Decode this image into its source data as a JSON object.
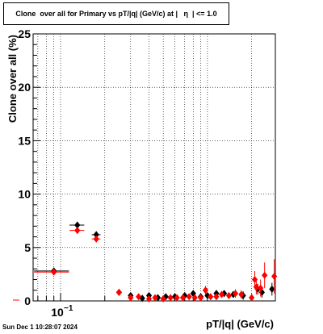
{
  "chart_data": {
    "type": "scatter",
    "title": "Clone  over all for Primary vs pT/|q| (GeV/c) at |   η  | <= 1.0",
    "xlabel": "pT/|q| (GeV/c)",
    "ylabel": "Clone  over all (%)",
    "x_scale": "log",
    "xlim": [
      0.065,
      2.9
    ],
    "ylim": [
      0,
      25
    ],
    "y_ticks": [
      0,
      5,
      10,
      15,
      20,
      25
    ],
    "x_tick_labels": [
      {
        "value": 0.1,
        "label": "10",
        "exponent": "−1"
      }
    ],
    "grid": true,
    "legend": "none",
    "series": [
      {
        "color": "#000000",
        "marker": "diamond",
        "points": [
          {
            "x": 0.09,
            "y": 2.8,
            "xerr": 0.024,
            "yerr": 0.2
          },
          {
            "x": 0.13,
            "y": 7.1,
            "xerr": 0.015,
            "yerr": 0.3
          },
          {
            "x": 0.175,
            "y": 6.2,
            "xerr": 0.012,
            "yerr": 0.3
          },
          {
            "x": 0.25,
            "y": 0.8,
            "yerr": 0.2
          },
          {
            "x": 0.3,
            "y": 0.5,
            "yerr": 0.2
          },
          {
            "x": 0.36,
            "y": 0.25,
            "yerr": 0.15
          },
          {
            "x": 0.4,
            "y": 0.5,
            "yerr": 0.15
          },
          {
            "x": 0.46,
            "y": 0.3,
            "yerr": 0.15
          },
          {
            "x": 0.52,
            "y": 0.4,
            "yerr": 0.15
          },
          {
            "x": 0.6,
            "y": 0.4,
            "yerr": 0.15
          },
          {
            "x": 0.7,
            "y": 0.5,
            "yerr": 0.15
          },
          {
            "x": 0.8,
            "y": 0.7,
            "yerr": 0.2
          },
          {
            "x": 0.9,
            "y": 0.4,
            "yerr": 0.2
          },
          {
            "x": 1.0,
            "y": 0.5,
            "yerr": 0.2
          },
          {
            "x": 1.15,
            "y": 0.7,
            "yerr": 0.3
          },
          {
            "x": 1.3,
            "y": 0.7,
            "yerr": 0.3
          },
          {
            "x": 1.5,
            "y": 0.6,
            "yerr": 0.3
          },
          {
            "x": 1.75,
            "y": 0.5,
            "yerr": 0.4
          },
          {
            "x": 2.2,
            "y": 1.1,
            "yerr": 0.5
          },
          {
            "x": 2.35,
            "y": 0.8,
            "yerr": 0.5
          },
          {
            "x": 2.75,
            "y": 1.1,
            "yerr": 0.6
          }
        ]
      },
      {
        "color": "#ff0000",
        "marker": "diamond",
        "points": [
          {
            "x": 0.09,
            "y": 2.7,
            "xerr": 0.024,
            "yerr": 0.2
          },
          {
            "x": 0.13,
            "y": 6.6,
            "xerr": 0.015,
            "yerr": 0.3
          },
          {
            "x": 0.175,
            "y": 5.8,
            "xerr": 0.012,
            "yerr": 0.3
          },
          {
            "x": 0.25,
            "y": 0.8,
            "yerr": 0.2
          },
          {
            "x": 0.3,
            "y": 0.3,
            "yerr": 0.15
          },
          {
            "x": 0.34,
            "y": 0.4,
            "yerr": 0.15
          },
          {
            "x": 0.4,
            "y": 0.2,
            "yerr": 0.15
          },
          {
            "x": 0.44,
            "y": 0.3,
            "yerr": 0.15
          },
          {
            "x": 0.5,
            "y": 0.2,
            "yerr": 0.15
          },
          {
            "x": 0.56,
            "y": 0.3,
            "yerr": 0.15
          },
          {
            "x": 0.62,
            "y": 0.3,
            "yerr": 0.15
          },
          {
            "x": 0.68,
            "y": 0.3,
            "yerr": 0.15
          },
          {
            "x": 0.75,
            "y": 0.4,
            "yerr": 0.2
          },
          {
            "x": 0.82,
            "y": 0.3,
            "yerr": 0.2
          },
          {
            "x": 0.9,
            "y": 0.3,
            "yerr": 0.2
          },
          {
            "x": 0.97,
            "y": 1.0,
            "yerr": 0.4
          },
          {
            "x": 1.05,
            "y": 0.4,
            "yerr": 0.3
          },
          {
            "x": 1.15,
            "y": 0.4,
            "yerr": 0.3
          },
          {
            "x": 1.25,
            "y": 0.6,
            "yerr": 0.3
          },
          {
            "x": 1.4,
            "y": 0.5,
            "yerr": 0.3
          },
          {
            "x": 1.55,
            "y": 0.7,
            "yerr": 0.4
          },
          {
            "x": 1.7,
            "y": 0.6,
            "yerr": 0.4
          },
          {
            "x": 2.0,
            "y": 0.3,
            "yerr": 0.4
          },
          {
            "x": 2.1,
            "y": 2.0,
            "yerr": 0.8
          },
          {
            "x": 2.15,
            "y": 1.3,
            "yerr": 0.7
          },
          {
            "x": 2.3,
            "y": 1.2,
            "yerr": 0.8
          },
          {
            "x": 2.45,
            "y": 2.4,
            "yerr": 1.2
          },
          {
            "x": 2.85,
            "y": 2.3,
            "yerr": 1.6
          }
        ]
      }
    ]
  },
  "footer": {
    "timestamp": "Sun Dec  1 10:28:07 2024"
  }
}
